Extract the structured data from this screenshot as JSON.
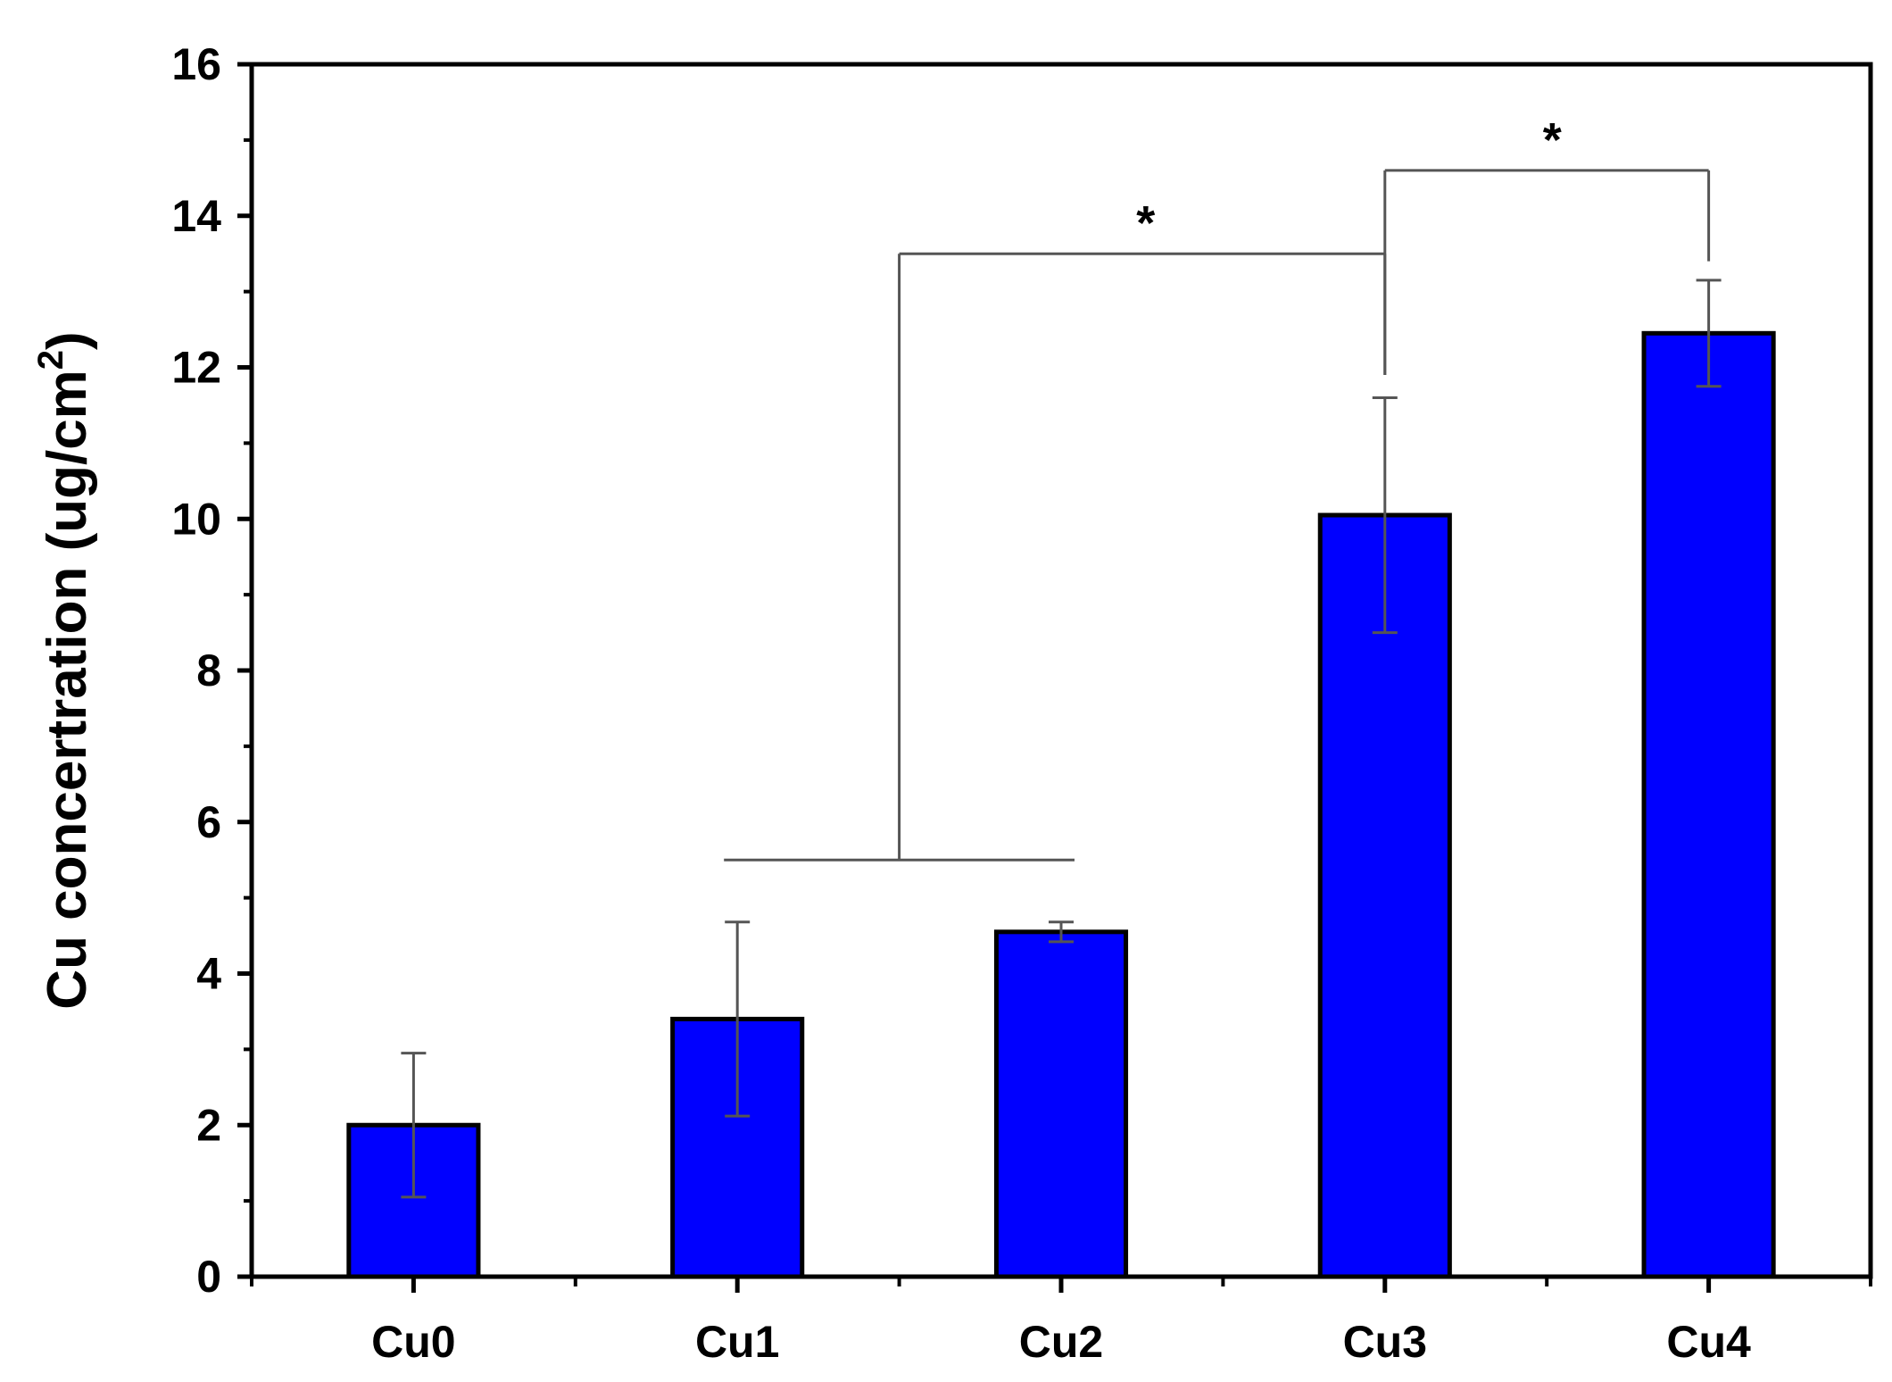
{
  "chart_data": {
    "type": "bar",
    "title": "",
    "xlabel": "",
    "ylabel": "Cu concertration (ug/cm",
    "ylabel_superscript": "2",
    "ylabel_close": ")",
    "categories": [
      "Cu0",
      "Cu1",
      "Cu2",
      "Cu3",
      "Cu4"
    ],
    "values": [
      2.0,
      3.4,
      4.55,
      10.05,
      12.45
    ],
    "error_bars": [
      0.95,
      1.28,
      0.13,
      1.55,
      0.7
    ],
    "ylim": [
      0,
      16
    ],
    "y_ticks": [
      0,
      2,
      4,
      6,
      8,
      10,
      12,
      14,
      16
    ],
    "y_tick_labels": [
      "0",
      "2",
      "4",
      "6",
      "8",
      "10",
      "12",
      "14",
      "16"
    ],
    "bar_color": "#0000ff",
    "bar_edge_color": "#000000",
    "error_color": "#555555",
    "grid": false,
    "legend": "none",
    "significance": [
      {
        "label": "*",
        "group_bar_from": "Cu1",
        "group_bar_to": "Cu2",
        "group_bar_y": 5.5,
        "from_x": "Cu1.5",
        "to": "Cu3",
        "bracket_y": 13.5,
        "right_drop_to": 11.9
      },
      {
        "label": "*",
        "from": "Cu3",
        "to": "Cu4",
        "bracket_y": 14.6,
        "left_drop_to": 11.9,
        "right_drop_to": 13.4
      }
    ]
  }
}
